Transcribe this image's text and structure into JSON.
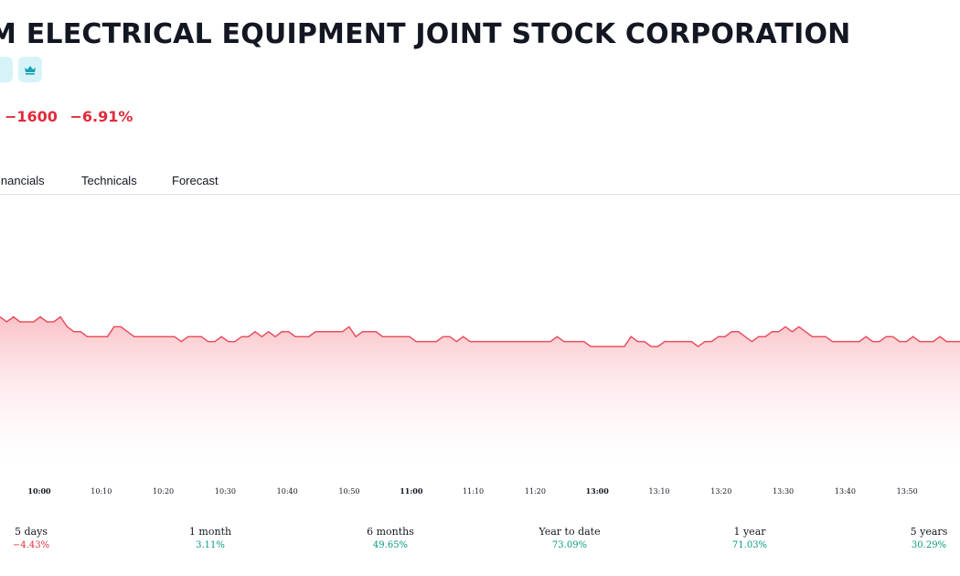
{
  "header": {
    "title": "M ELECTRICAL EQUIPMENT JOINT STOCK CORPORATION",
    "change": {
      "absolute": "−1600",
      "percent": "−6.91%"
    }
  },
  "colors": {
    "negative": "#e02b3c",
    "positive": "#089981",
    "line": "#e8505f",
    "badge_bg": "#d6f4f8",
    "badge_icon": "#1aa3b5"
  },
  "tabs": [
    {
      "label": "inancials"
    },
    {
      "label": "Technicals"
    },
    {
      "label": "Forecast"
    }
  ],
  "chart_data": {
    "type": "area",
    "title": "",
    "xlabel": "",
    "ylabel": "",
    "grid": false,
    "x_tick_labels": [
      "10:00",
      "10:10",
      "10:20",
      "10:30",
      "10:40",
      "10:50",
      "11:00",
      "11:10",
      "11:20",
      "13:00",
      "13:10",
      "13:20",
      "13:30",
      "13:40",
      "13:50"
    ],
    "series": [
      {
        "values": [
          6,
          5,
          6,
          5,
          5,
          5,
          6,
          5,
          5,
          6,
          4,
          3,
          3,
          2,
          2,
          2,
          2,
          4,
          4,
          3,
          2,
          2,
          2,
          2,
          2,
          2,
          2,
          1,
          2,
          2,
          2,
          1,
          1,
          2,
          1,
          1,
          2,
          2,
          3,
          2,
          3,
          2,
          3,
          3,
          2,
          2,
          2,
          3,
          3,
          3,
          3,
          3,
          4,
          2,
          3,
          3,
          3,
          2,
          2,
          2,
          2,
          2,
          1,
          1,
          1,
          1,
          2,
          2,
          1,
          2,
          1,
          1,
          1,
          1,
          1,
          1,
          1,
          1,
          1,
          1,
          1,
          1,
          1,
          2,
          1,
          1,
          1,
          1,
          0,
          0,
          0,
          0,
          0,
          0,
          2,
          1,
          1,
          0,
          0,
          1,
          1,
          1,
          1,
          1,
          0,
          1,
          1,
          2,
          2,
          3,
          3,
          2,
          1,
          2,
          2,
          3,
          3,
          4,
          3,
          4,
          3,
          2,
          2,
          2,
          1,
          1,
          1,
          1,
          1,
          2,
          1,
          1,
          2,
          2,
          1,
          1,
          2,
          1,
          1,
          1,
          2,
          1,
          1,
          1
        ]
      }
    ]
  },
  "performance": [
    {
      "label": "5 days",
      "value": "−4.43%",
      "sign": "neg"
    },
    {
      "label": "1 month",
      "value": "3.11%",
      "sign": "pos"
    },
    {
      "label": "6 months",
      "value": "49.65%",
      "sign": "pos"
    },
    {
      "label": "Year to date",
      "value": "73.09%",
      "sign": "pos"
    },
    {
      "label": "1 year",
      "value": "71.03%",
      "sign": "pos"
    },
    {
      "label": "5 years",
      "value": "30.29%",
      "sign": "pos"
    }
  ]
}
